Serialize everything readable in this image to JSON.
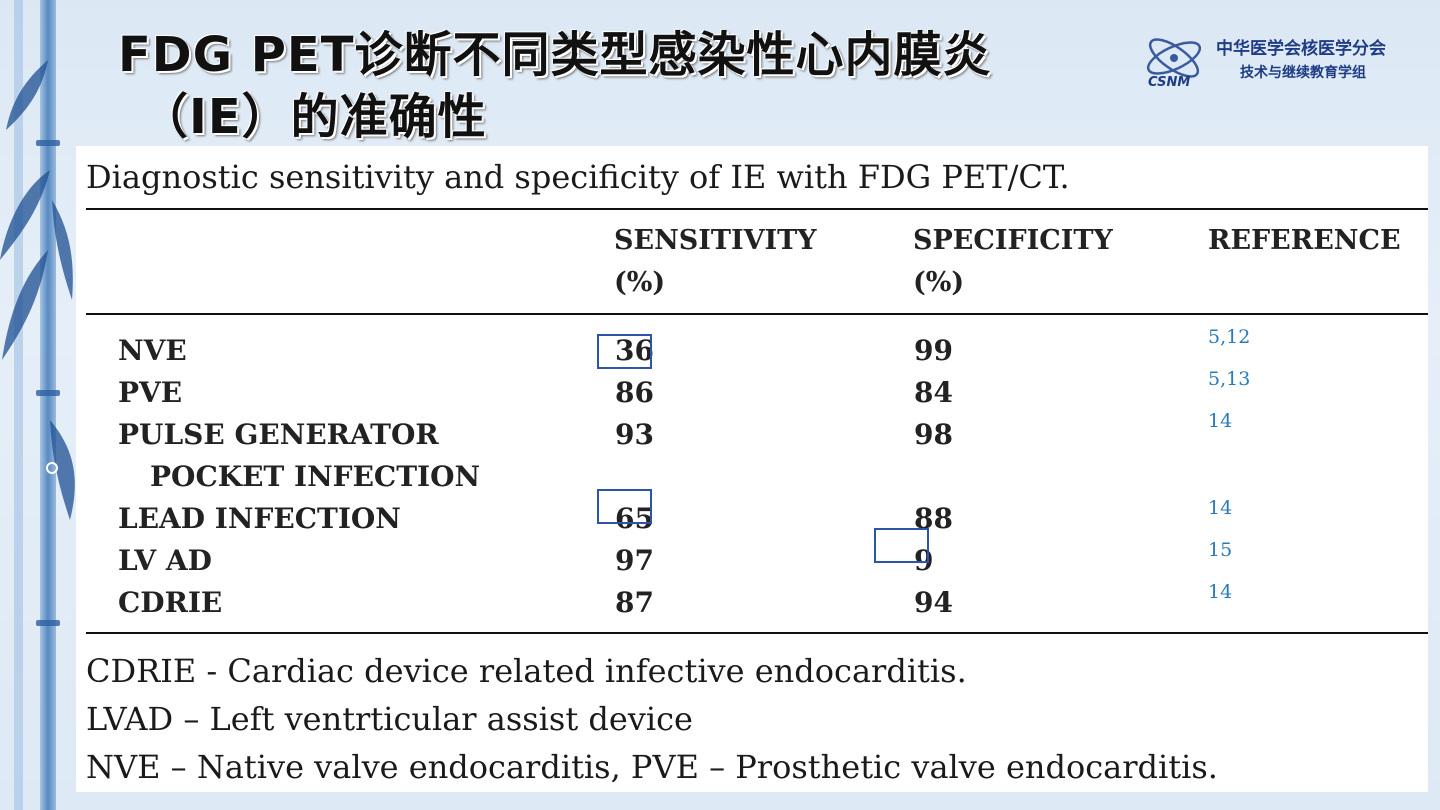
{
  "title": {
    "line1": "FDG PET诊断不同类型感染性心内膜炎",
    "line2": "（IE）的准确性"
  },
  "logo": {
    "mark": "CSNM",
    "org": "中华医学会核医学分会",
    "group": "技术与继续教育学组"
  },
  "table": {
    "caption": "Diagnostic sensitivity and specificity of IE with FDG PET/CT.",
    "headers": [
      {
        "line1": "",
        "line2": ""
      },
      {
        "line1": "SENSITIVITY",
        "line2": "(%)"
      },
      {
        "line1": "SPECIFICITY",
        "line2": "(%)"
      },
      {
        "line1": "REFERENCE",
        "line2": ""
      }
    ],
    "rows": [
      {
        "label": "NVE",
        "label2": "",
        "sensitivity": "36",
        "specificity": "99",
        "reference": "5,12"
      },
      {
        "label": "PVE",
        "label2": "",
        "sensitivity": "86",
        "specificity": "84",
        "reference": "5,13"
      },
      {
        "label": "PULSE GENERATOR",
        "label2": "POCKET INFECTION",
        "sensitivity": "93",
        "specificity": "98",
        "reference": "14"
      },
      {
        "label": "LEAD INFECTION",
        "label2": "",
        "sensitivity": "65",
        "specificity": "88",
        "reference": "14"
      },
      {
        "label": "LV AD",
        "label2": "",
        "sensitivity": "97",
        "specificity": "9",
        "reference": "15"
      },
      {
        "label": "CDRIE",
        "label2": "",
        "sensitivity": "87",
        "specificity": "94",
        "reference": "14"
      }
    ],
    "highlighted_cells": [
      "NVE sensitivity",
      "LEAD INFECTION sensitivity",
      "LV AD specificity"
    ],
    "highlight_color": "#2b55a8"
  },
  "notes": [
    "CDRIE - Cardiac device related infective endocarditis.",
    "LVAD – Left ventrticular assist device",
    "NVE – Native valve endocarditis, PVE – Prosthetic valve endocarditis."
  ]
}
